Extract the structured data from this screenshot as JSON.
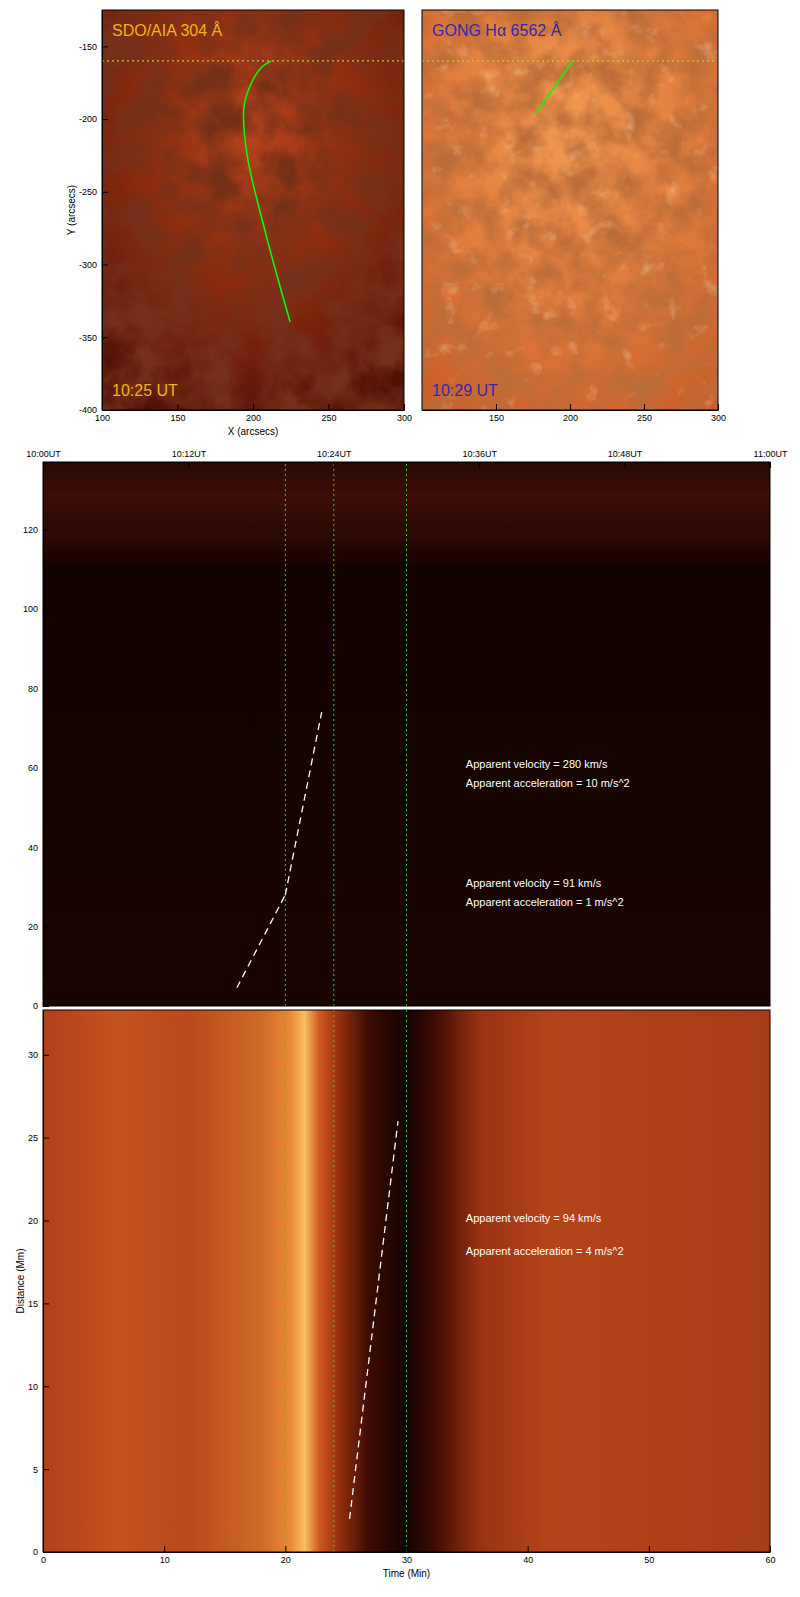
{
  "chart_data": [
    {
      "type": "image",
      "title": "SDO/AIA 304 Å",
      "annotations": [
        {
          "text": "10:25 UT"
        }
      ],
      "x_label": "X (arcsecs)",
      "y_label": "Y (arcsecs)",
      "xlim": [
        100,
        300
      ],
      "ylim": [
        -400,
        -125
      ],
      "xticks": [
        100,
        150,
        200,
        250,
        300
      ],
      "yticks": [
        -150,
        -200,
        -250,
        -300,
        -350,
        -400
      ],
      "series": [
        {
          "type": "line",
          "color": "#00ff00",
          "line_style": "solid",
          "x": [
            224.6,
            209,
            196,
            194,
            199,
            206,
            212
          ],
          "values": [
            -339.5,
            -281,
            -224,
            -192,
            -175,
            -164,
            -160
          ]
        },
        {
          "type": "line",
          "color": "#c8c832",
          "line_style": "dotted",
          "x": [
            100,
            300
          ],
          "values": [
            -160,
            -160
          ]
        }
      ]
    },
    {
      "type": "image",
      "title": "GONG Hα 6562 Å",
      "annotations": [
        {
          "text": "10:29 UT"
        }
      ],
      "xlim": [
        100,
        300
      ],
      "ylim": [
        -400,
        -125
      ],
      "xticks": [
        150,
        200,
        250,
        300
      ],
      "tick_labels": "x",
      "series": [
        {
          "type": "line",
          "color": "#00ff00",
          "line_style": "solid",
          "x": [
            177,
            202
          ],
          "values": [
            -196,
            -160
          ]
        },
        {
          "type": "line",
          "color": "#c8c832",
          "line_style": "dotted",
          "x": [
            100,
            300
          ],
          "values": [
            -160,
            -160
          ]
        }
      ]
    },
    {
      "type": "image",
      "xlim": [
        0,
        60
      ],
      "ylim": [
        0,
        137
      ],
      "xticks": [
        {
          "value": 0,
          "label": "10:00UT"
        },
        {
          "value": 12,
          "label": "10:12UT"
        },
        {
          "value": 24,
          "label": "10:24UT"
        },
        {
          "value": 36,
          "label": "10:36UT"
        },
        {
          "value": 48,
          "label": "10:48UT"
        },
        {
          "value": 60,
          "label": "11:00UT"
        }
      ],
      "yticks": [
        0,
        20,
        40,
        60,
        80,
        100,
        120
      ],
      "vlines": {
        "x": [
          20,
          24,
          30
        ],
        "color": "#33cc33",
        "line_style": "dotted"
      },
      "series": [
        {
          "type": "line",
          "color": "#ffffff",
          "line_style": "dashed",
          "x": [
            16,
            20
          ],
          "values": [
            4.6,
            28
          ]
        },
        {
          "type": "line",
          "color": "#ffffff",
          "line_style": "dashed",
          "x": [
            20,
            23
          ],
          "values": [
            28,
            74
          ]
        }
      ],
      "annotations": [
        {
          "text": "Apparent velocity = 280 km/s",
          "x": 34.9,
          "y": 60.7
        },
        {
          "text": "Apparent acceleration = 10 m/s^2",
          "x": 34.9,
          "y": 55.9
        },
        {
          "text": "Apparent velocity = 91 km/s",
          "x": 34.9,
          "y": 30.6
        },
        {
          "text": "Apparent acceleration = 1 m/s^2",
          "x": 34.9,
          "y": 25.8
        }
      ]
    },
    {
      "type": "image",
      "x_label": "Time (Min)",
      "y_label": "Distance (Mm)",
      "xlim": [
        0,
        60
      ],
      "ylim": [
        0,
        32.7
      ],
      "xticks": [
        0,
        10,
        20,
        30,
        40,
        50,
        60
      ],
      "yticks": [
        0,
        5,
        10,
        15,
        20,
        25,
        30
      ],
      "vlines": {
        "x": [
          20,
          24,
          30
        ],
        "color": "#33cc33",
        "line_style": "dotted"
      },
      "series": [
        {
          "type": "line",
          "color": "#ffffff",
          "line_style": "dashed",
          "x": [
            25.3,
            29.3
          ],
          "values": [
            2,
            26
          ]
        }
      ],
      "annotations": [
        {
          "text": "Apparent velocity = 94 km/s",
          "x": 34.9,
          "y": 20.1
        },
        {
          "text": "Apparent acceleration = 4 m/s^2",
          "x": 34.9,
          "y": 18.1
        }
      ]
    }
  ]
}
